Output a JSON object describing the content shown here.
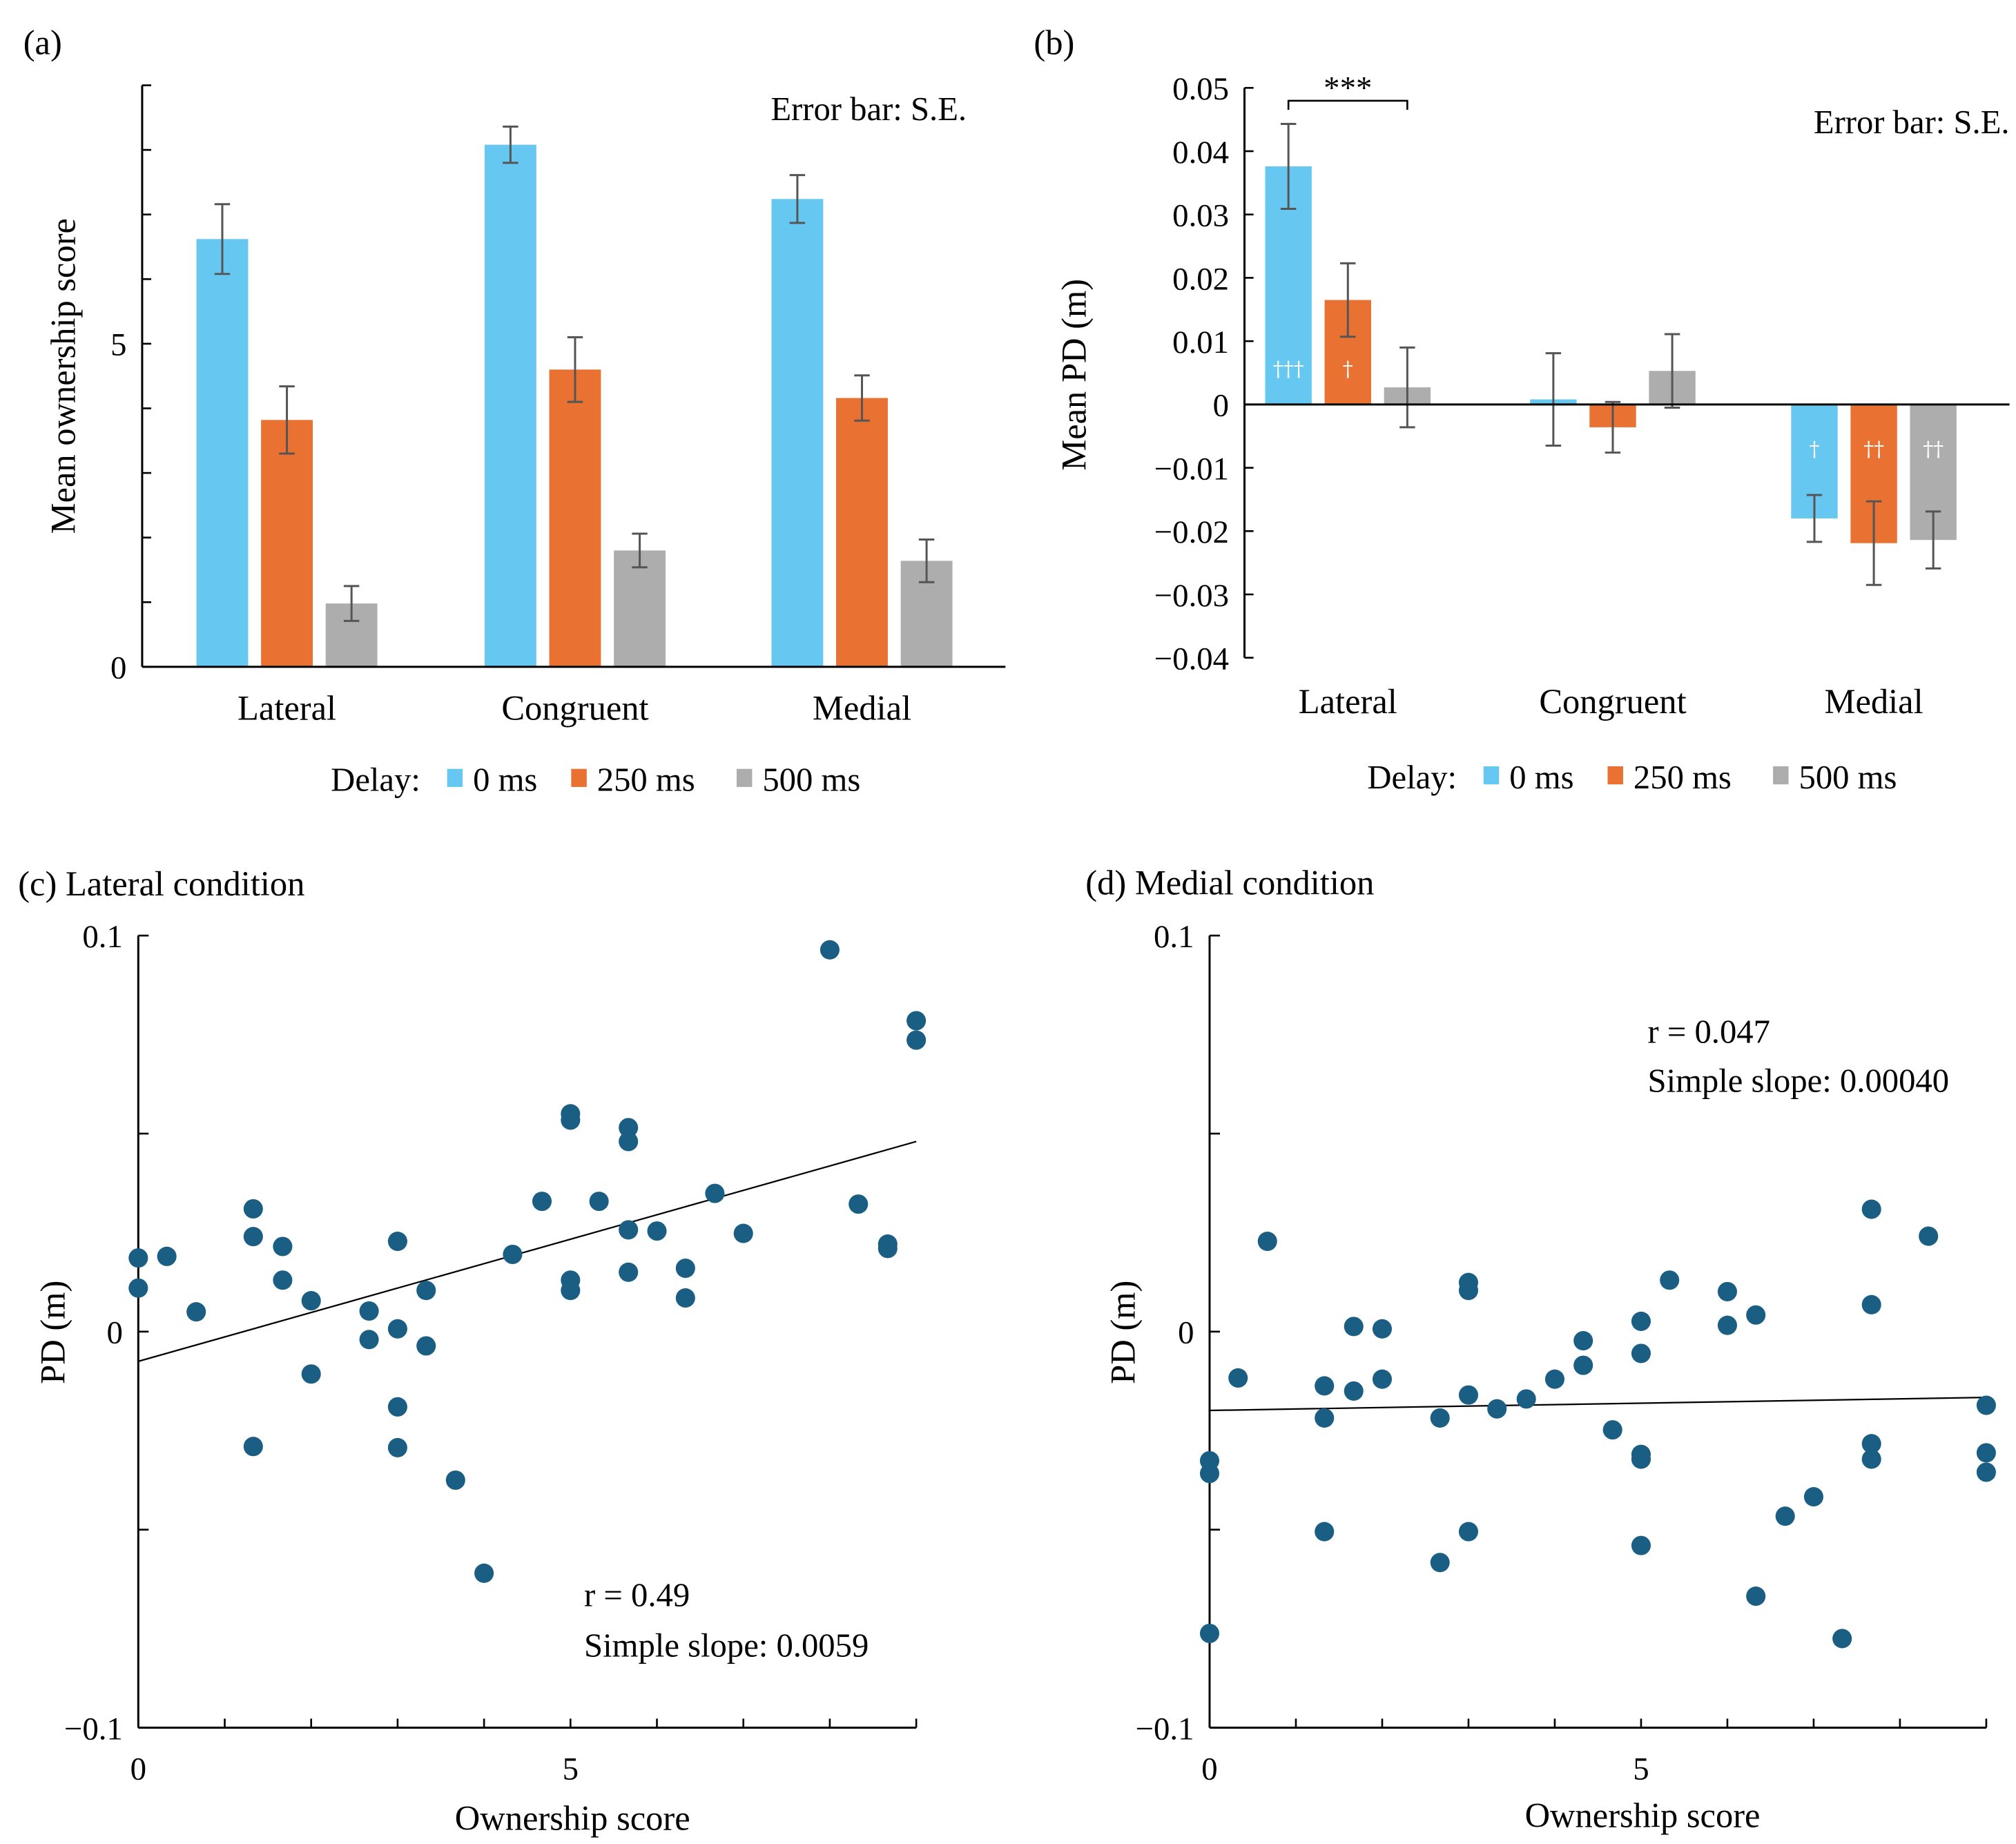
{
  "colors": {
    "delay_0": "#66C8F0",
    "delay_250": "#E97132",
    "delay_500": "#ADADAD",
    "scatter": "#1A5E84",
    "error_bar": "#555555"
  },
  "legend": {
    "prefix": "Delay:",
    "items": [
      "0 ms",
      "250 ms",
      "500 ms"
    ]
  },
  "chart_data": [
    {
      "panel": "(a)",
      "type": "bar",
      "title": "",
      "xlabel": "",
      "ylabel": "Mean ownership score",
      "ylim": [
        0,
        9
      ],
      "yticks": [
        0,
        1,
        2,
        3,
        4,
        5,
        6,
        7,
        8,
        9
      ],
      "ytick_labels": {
        "0": "0",
        "5": "5"
      },
      "categories": [
        "Lateral",
        "Congruent",
        "Medial"
      ],
      "annotation": "Error bar: S.E.",
      "legend_position": "bottom",
      "series": [
        {
          "name": "0 ms",
          "values": [
            6.62,
            8.08,
            7.24
          ],
          "se": [
            0.54,
            0.28,
            0.37
          ]
        },
        {
          "name": "250 ms",
          "values": [
            3.82,
            4.6,
            4.16
          ],
          "se": [
            0.52,
            0.5,
            0.35
          ]
        },
        {
          "name": "500 ms",
          "values": [
            0.98,
            1.8,
            1.64
          ],
          "se": [
            0.27,
            0.26,
            0.33
          ]
        }
      ]
    },
    {
      "panel": "(b)",
      "type": "bar",
      "title": "",
      "xlabel": "",
      "ylabel": "Mean PD (m)",
      "ylim": [
        -0.04,
        0.05
      ],
      "yticks": [
        0.05,
        0.04,
        0.03,
        0.02,
        0.01,
        0,
        -0.01,
        -0.02,
        -0.03,
        -0.04
      ],
      "ytick_labels": [
        "0.05",
        "0.04",
        "0.03",
        "0.02",
        "0.01",
        "0",
        "−0.01",
        "−0.02",
        "−0.03",
        "−0.04"
      ],
      "categories": [
        "Lateral",
        "Congruent",
        "Medial"
      ],
      "annotation": "Error bar: S.E.",
      "significance": {
        "label": "***",
        "between": [
          "Lateral 0 ms",
          "Lateral 500 ms"
        ]
      },
      "legend_position": "bottom",
      "series": [
        {
          "name": "0 ms",
          "values": [
            0.0376,
            0.0008,
            -0.018
          ],
          "se": [
            0.0067,
            0.0073,
            0.0037
          ],
          "daggers": [
            "†††",
            "",
            "†"
          ]
        },
        {
          "name": "250 ms",
          "values": [
            0.0165,
            -0.0036,
            -0.0219
          ],
          "se": [
            0.0058,
            0.004,
            0.0066
          ],
          "daggers": [
            "†",
            "",
            "††"
          ]
        },
        {
          "name": "500 ms",
          "values": [
            0.0027,
            0.0053,
            -0.0214
          ],
          "se": [
            0.0063,
            0.0058,
            0.0045
          ],
          "daggers": [
            "",
            "",
            "††"
          ]
        }
      ]
    },
    {
      "panel": "(c)",
      "title": "Lateral condition",
      "type": "scatter",
      "xlabel": "Ownership score",
      "ylabel": "PD (m)",
      "xlim": [
        0,
        9
      ],
      "ylim": [
        -0.1,
        0.1
      ],
      "xticks": [
        0,
        1,
        2,
        3,
        4,
        5,
        6,
        7,
        8,
        9
      ],
      "xtick_labels": {
        "0": "0",
        "5": "5"
      },
      "yticks": [
        -0.1,
        -0.05,
        0,
        0.05,
        0.1
      ],
      "ytick_labels": {
        "-0.1": "−0.1",
        "0": "0",
        "0.1": "0.1"
      },
      "annotation_lines": [
        "r = 0.49",
        "Simple slope: 0.0059"
      ],
      "regression": {
        "x": [
          0,
          9
        ],
        "y": [
          -0.0075,
          0.048
        ]
      },
      "points": [
        [
          0,
          0.0186
        ],
        [
          0,
          0.011
        ],
        [
          0.33,
          0.019
        ],
        [
          0.67,
          0.005
        ],
        [
          1.33,
          0.031
        ],
        [
          1.33,
          0.024
        ],
        [
          1.33,
          -0.029
        ],
        [
          1.67,
          0.0215
        ],
        [
          1.67,
          0.013
        ],
        [
          2,
          0.0078
        ],
        [
          2,
          -0.0107
        ],
        [
          2.67,
          0.0052
        ],
        [
          2.67,
          -0.002
        ],
        [
          3,
          0.0228
        ],
        [
          3,
          0.0007
        ],
        [
          3,
          -0.019
        ],
        [
          3,
          -0.0293
        ],
        [
          3.33,
          0.0104
        ],
        [
          3.33,
          -0.0036
        ],
        [
          3.67,
          -0.0375
        ],
        [
          4,
          -0.061
        ],
        [
          4.33,
          0.0195
        ],
        [
          4.67,
          0.0329
        ],
        [
          5,
          0.0104
        ],
        [
          5,
          0.013
        ],
        [
          5,
          0.0534
        ],
        [
          5,
          0.055
        ],
        [
          5.33,
          0.0329
        ],
        [
          5.67,
          0.0515
        ],
        [
          5.67,
          0.048
        ],
        [
          5.67,
          0.0257
        ],
        [
          5.67,
          0.015
        ],
        [
          6,
          0.0254
        ],
        [
          6.33,
          0.016
        ],
        [
          6.33,
          0.0085
        ],
        [
          6.67,
          0.0349
        ],
        [
          7,
          0.0248
        ],
        [
          8,
          0.0964
        ],
        [
          8.33,
          0.0322
        ],
        [
          8.67,
          0.0221
        ],
        [
          8.67,
          0.021
        ],
        [
          9,
          0.0785
        ],
        [
          9,
          0.0736
        ]
      ]
    },
    {
      "panel": "(d)",
      "title": "Medial condition",
      "type": "scatter",
      "xlabel": "Ownership score",
      "ylabel": "PD (m)",
      "xlim": [
        0,
        9
      ],
      "ylim": [
        -0.1,
        0.1
      ],
      "xticks": [
        0,
        1,
        2,
        3,
        4,
        5,
        6,
        7,
        8,
        9
      ],
      "xtick_labels": {
        "0": "0",
        "5": "5"
      },
      "yticks": [
        -0.1,
        -0.05,
        0,
        0.05,
        0.1
      ],
      "ytick_labels": {
        "-0.1": "−0.1",
        "0": "0",
        "0.1": "0.1"
      },
      "annotation_lines": [
        "r = 0.047",
        "Simple slope: 0.00040"
      ],
      "regression": {
        "x": [
          0,
          9
        ],
        "y": [
          -0.0199,
          -0.0166
        ]
      },
      "points": [
        [
          0,
          -0.0326
        ],
        [
          0,
          -0.0358
        ],
        [
          0,
          -0.0762
        ],
        [
          0.33,
          -0.0117
        ],
        [
          0.67,
          0.0228
        ],
        [
          1.33,
          -0.0137
        ],
        [
          1.33,
          -0.0218
        ],
        [
          1.33,
          -0.0505
        ],
        [
          1.67,
          0.0013
        ],
        [
          1.67,
          -0.015
        ],
        [
          2,
          0.0007
        ],
        [
          2,
          -0.012
        ],
        [
          2.67,
          -0.0218
        ],
        [
          2.67,
          -0.0583
        ],
        [
          3,
          0.0124
        ],
        [
          3,
          0.0104
        ],
        [
          3,
          -0.016
        ],
        [
          3,
          -0.0505
        ],
        [
          3.33,
          -0.0195
        ],
        [
          3.67,
          -0.017
        ],
        [
          4,
          -0.012
        ],
        [
          4.33,
          -0.0023
        ],
        [
          4.33,
          -0.0085
        ],
        [
          4.67,
          -0.0248
        ],
        [
          5,
          0.0026
        ],
        [
          5,
          -0.0055
        ],
        [
          5,
          -0.031
        ],
        [
          5,
          -0.0322
        ],
        [
          5,
          -0.054
        ],
        [
          5.33,
          0.013
        ],
        [
          6,
          0.0101
        ],
        [
          6,
          0.0016
        ],
        [
          6.33,
          0.0042
        ],
        [
          6.33,
          -0.0668
        ],
        [
          6.67,
          -0.0466
        ],
        [
          7,
          -0.0417
        ],
        [
          7.33,
          -0.0775
        ],
        [
          7.67,
          0.0309
        ],
        [
          7.67,
          0.0068
        ],
        [
          7.67,
          -0.0283
        ],
        [
          7.67,
          -0.0322
        ],
        [
          8.33,
          0.0241
        ],
        [
          9,
          -0.0186
        ],
        [
          9,
          -0.0306
        ],
        [
          9,
          -0.0355
        ]
      ]
    }
  ]
}
